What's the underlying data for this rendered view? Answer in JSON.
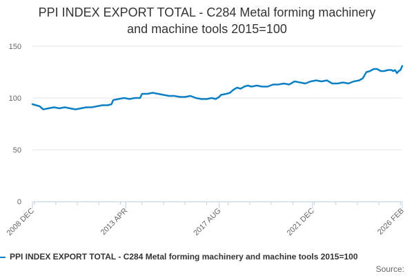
{
  "chart_data": {
    "type": "line",
    "title_lines": [
      "PPI INDEX EXPORT TOTAL - C284 Metal forming machinery",
      "and machine tools 2015=100"
    ],
    "ylim": [
      0,
      150
    ],
    "yticks": [
      "0",
      "50",
      "100",
      "150"
    ],
    "xticks": [
      "2008 DEC",
      "2013 APR",
      "2017 AUG",
      "2021 DEC",
      "2026 FEB"
    ],
    "xlim": [
      "2008-12",
      "2026-02"
    ],
    "grid": true,
    "legend_position": "bottom",
    "series": [
      {
        "name": "PPI INDEX EXPORT TOTAL - C284 Metal forming machinery and machine tools 2015=100",
        "color": "#0b7fc4",
        "points": [
          [
            "2008-12",
            94
          ],
          [
            "2009-02",
            93
          ],
          [
            "2009-04",
            92
          ],
          [
            "2009-06",
            89
          ],
          [
            "2009-09",
            90
          ],
          [
            "2009-12",
            91
          ],
          [
            "2010-03",
            90
          ],
          [
            "2010-06",
            91
          ],
          [
            "2010-09",
            90
          ],
          [
            "2010-12",
            89
          ],
          [
            "2011-03",
            90
          ],
          [
            "2011-06",
            91
          ],
          [
            "2011-09",
            91
          ],
          [
            "2011-12",
            92
          ],
          [
            "2012-03",
            93
          ],
          [
            "2012-06",
            93
          ],
          [
            "2012-08",
            94
          ],
          [
            "2012-09",
            98
          ],
          [
            "2012-12",
            99
          ],
          [
            "2013-03",
            100
          ],
          [
            "2013-06",
            99
          ],
          [
            "2013-09",
            100
          ],
          [
            "2013-12",
            100
          ],
          [
            "2014-01",
            104
          ],
          [
            "2014-04",
            104
          ],
          [
            "2014-07",
            105
          ],
          [
            "2014-10",
            104
          ],
          [
            "2015-01",
            103
          ],
          [
            "2015-04",
            102
          ],
          [
            "2015-07",
            102
          ],
          [
            "2015-10",
            101
          ],
          [
            "2016-01",
            101
          ],
          [
            "2016-04",
            102
          ],
          [
            "2016-07",
            100
          ],
          [
            "2016-10",
            99
          ],
          [
            "2017-01",
            99
          ],
          [
            "2017-04",
            100
          ],
          [
            "2017-06",
            99
          ],
          [
            "2017-08",
            101
          ],
          [
            "2017-09",
            103
          ],
          [
            "2017-12",
            104
          ],
          [
            "2018-02",
            105
          ],
          [
            "2018-04",
            108
          ],
          [
            "2018-06",
            110
          ],
          [
            "2018-08",
            109
          ],
          [
            "2018-10",
            111
          ],
          [
            "2018-12",
            112
          ],
          [
            "2019-02",
            111
          ],
          [
            "2019-05",
            112
          ],
          [
            "2019-08",
            111
          ],
          [
            "2019-11",
            111
          ],
          [
            "2020-02",
            113
          ],
          [
            "2020-05",
            113
          ],
          [
            "2020-08",
            114
          ],
          [
            "2020-11",
            113
          ],
          [
            "2021-02",
            116
          ],
          [
            "2021-05",
            115
          ],
          [
            "2021-08",
            114
          ],
          [
            "2021-11",
            116
          ],
          [
            "2022-02",
            117
          ],
          [
            "2022-05",
            116
          ],
          [
            "2022-08",
            117
          ],
          [
            "2022-11",
            114
          ],
          [
            "2023-02",
            114
          ],
          [
            "2023-05",
            115
          ],
          [
            "2023-08",
            114
          ],
          [
            "2023-11",
            116
          ],
          [
            "2024-02",
            117
          ],
          [
            "2024-04",
            119
          ],
          [
            "2024-06",
            125
          ],
          [
            "2024-08",
            126
          ],
          [
            "2024-10",
            128
          ],
          [
            "2024-12",
            128
          ],
          [
            "2025-02",
            126
          ],
          [
            "2025-04",
            126
          ],
          [
            "2025-06",
            127
          ],
          [
            "2025-08",
            127
          ],
          [
            "2025-09",
            126
          ],
          [
            "2025-10",
            127
          ],
          [
            "2025-11",
            124
          ],
          [
            "2025-12",
            126
          ],
          [
            "2026-01",
            127
          ],
          [
            "2026-02",
            131
          ]
        ]
      }
    ],
    "credit": "Source:"
  }
}
